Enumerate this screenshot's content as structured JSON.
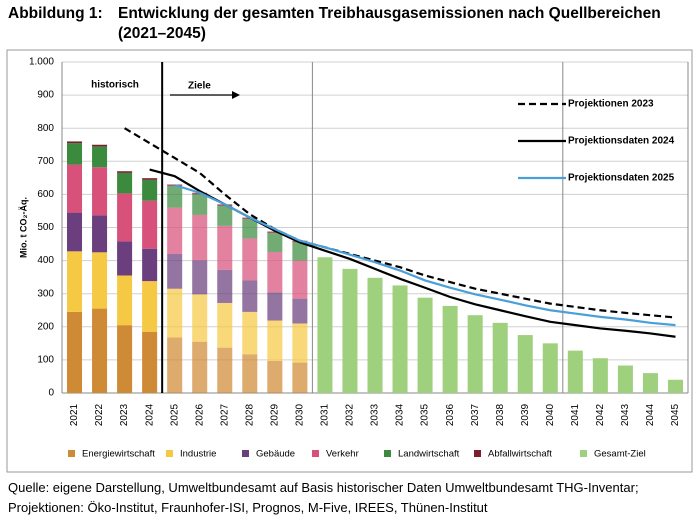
{
  "chart_data": {
    "type": "bar",
    "stacked": true,
    "figure_label": "Abbildung 1:",
    "title": "Entwicklung der gesamten Treibhausgasemissionen nach Quellbereichen (2021–2045)",
    "y_label": "Mio. t CO₂-Äq.",
    "annotations": [
      "historisch",
      "Ziele"
    ],
    "source": [
      "Quelle: eigene Darstellung, Umweltbundesamt auf Basis historischer Daten Umweltbundesamt THG-Inventar;",
      "Projektionen: Öko-Institut, Fraunhofer-ISI, Prognos, M-Five, IREES, Thünen-Institut"
    ],
    "categories": [
      "2021",
      "2022",
      "2023",
      "2024",
      "2025",
      "2026",
      "2027",
      "2028",
      "2029",
      "2030",
      "2031",
      "2032",
      "2033",
      "2034",
      "2035",
      "2036",
      "2037",
      "2038",
      "2039",
      "2040",
      "2041",
      "2042",
      "2043",
      "2044",
      "2045"
    ],
    "ylim": [
      0,
      1000
    ],
    "yticks": [
      0,
      100,
      200,
      300,
      400,
      500,
      600,
      700,
      800,
      900,
      {
        "value": 1000,
        "label": "1.000"
      }
    ],
    "grid": true,
    "series": [
      {
        "name": "Energiewirtschaft",
        "type": "bar",
        "color": "#cf8a35",
        "values": [
          245,
          255,
          205,
          185,
          168,
          155,
          137,
          117,
          97,
          92,
          null,
          null,
          null,
          null,
          null,
          null,
          null,
          null,
          null,
          null,
          null,
          null,
          null,
          null,
          null
        ]
      },
      {
        "name": "Industrie",
        "type": "bar",
        "color": "#f6c945",
        "values": [
          183,
          170,
          150,
          153,
          147,
          143,
          135,
          128,
          122,
          118,
          null,
          null,
          null,
          null,
          null,
          null,
          null,
          null,
          null,
          null,
          null,
          null,
          null,
          null,
          null
        ]
      },
      {
        "name": "Gebäude",
        "type": "bar",
        "color": "#6b3f7d",
        "values": [
          117,
          112,
          103,
          98,
          105,
          103,
          100,
          95,
          85,
          75,
          null,
          null,
          null,
          null,
          null,
          null,
          null,
          null,
          null,
          null,
          null,
          null,
          null,
          null,
          null
        ]
      },
      {
        "name": "Verkehr",
        "type": "bar",
        "color": "#d8517b",
        "values": [
          145,
          145,
          145,
          145,
          140,
          137,
          133,
          127,
          122,
          115,
          null,
          null,
          null,
          null,
          null,
          null,
          null,
          null,
          null,
          null,
          null,
          null,
          null,
          null,
          null
        ]
      },
      {
        "name": "Landwirtschaft",
        "type": "bar",
        "color": "#3b8a3e",
        "values": [
          65,
          63,
          62,
          63,
          65,
          62,
          60,
          58,
          57,
          55,
          null,
          null,
          null,
          null,
          null,
          null,
          null,
          null,
          null,
          null,
          null,
          null,
          null,
          null,
          null
        ]
      },
      {
        "name": "Abfallwirtschaft",
        "type": "bar",
        "color": "#7a1f30",
        "values": [
          5,
          5,
          5,
          5,
          5,
          5,
          5,
          5,
          5,
          5,
          null,
          null,
          null,
          null,
          null,
          null,
          null,
          null,
          null,
          null,
          null,
          null,
          null,
          null,
          null
        ]
      },
      {
        "name": "Gesamt-Ziel",
        "type": "bar",
        "color": "#9fd07d",
        "values": [
          null,
          null,
          null,
          null,
          null,
          null,
          null,
          null,
          null,
          null,
          410,
          375,
          348,
          325,
          288,
          263,
          235,
          212,
          175,
          150,
          128,
          105,
          83,
          60,
          40
        ]
      },
      {
        "name": "Projektionen 2023",
        "type": "line",
        "dashed": true,
        "color": "#000000",
        "values": [
          null,
          null,
          800,
          755,
          710,
          665,
          600,
          540,
          495,
          460,
          440,
          420,
          400,
          380,
          355,
          335,
          315,
          300,
          285,
          270,
          260,
          250,
          242,
          235,
          228
        ]
      },
      {
        "name": "Projektionsdaten 2024",
        "type": "line",
        "dashed": false,
        "color": "#000000",
        "values": [
          null,
          null,
          null,
          675,
          655,
          610,
          570,
          530,
          490,
          455,
          430,
          405,
          375,
          345,
          318,
          290,
          268,
          250,
          232,
          215,
          205,
          195,
          188,
          180,
          170
        ]
      },
      {
        "name": "Projektionsdaten 2025",
        "type": "line",
        "dashed": false,
        "color": "#4a9fd8",
        "values": [
          null,
          null,
          null,
          null,
          628,
          605,
          570,
          530,
          495,
          460,
          440,
          418,
          395,
          370,
          340,
          318,
          298,
          282,
          265,
          250,
          240,
          230,
          222,
          212,
          205
        ]
      }
    ]
  }
}
